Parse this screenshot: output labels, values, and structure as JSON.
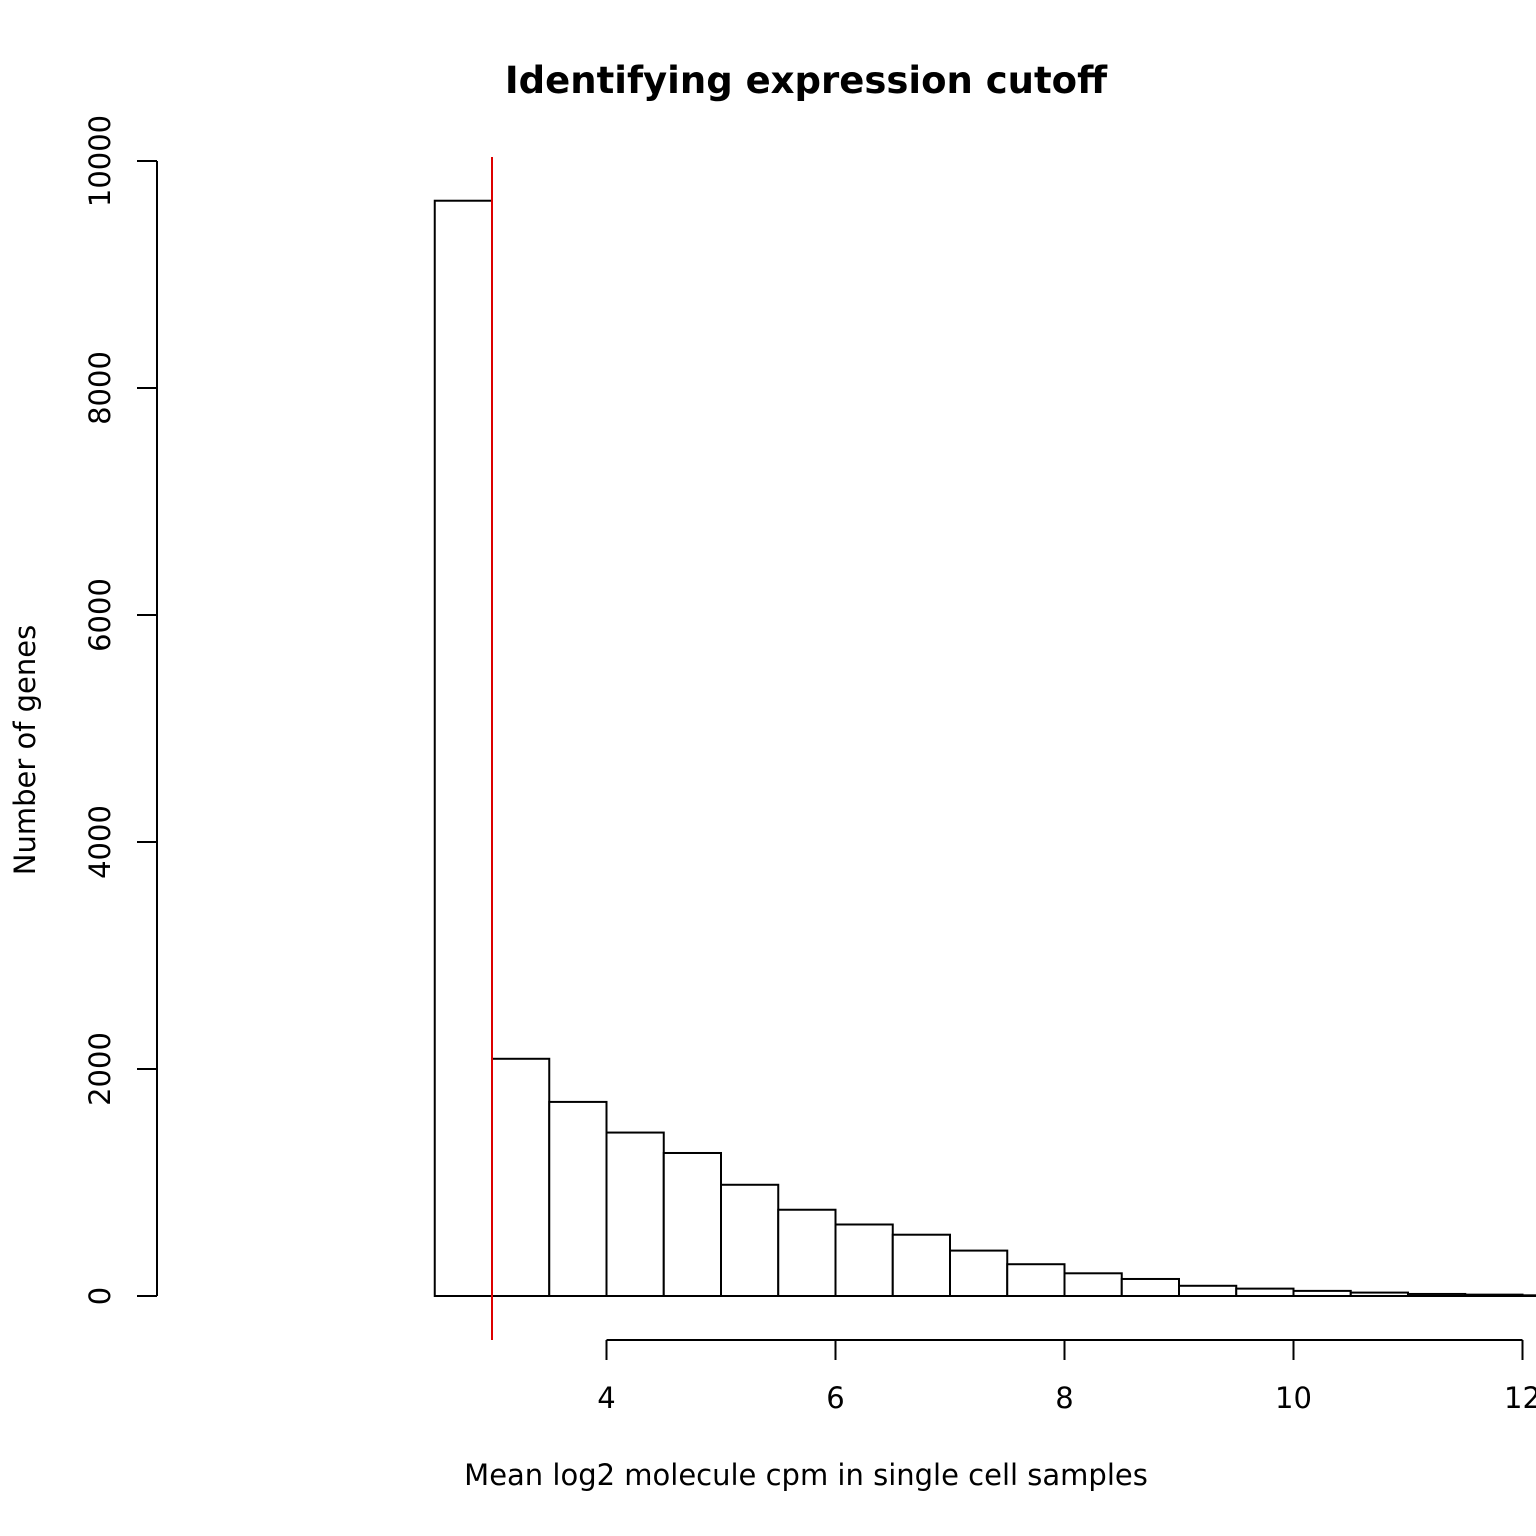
{
  "chart_data": {
    "type": "bar",
    "title": "Identifying expression cutoff",
    "xlabel": "Mean log2 molecule cpm in single cell samples",
    "ylabel": "Number of genes",
    "xlim": [
      2.5,
      13
    ],
    "ylim": [
      0,
      10000
    ],
    "x_ticks": [
      4,
      6,
      8,
      10,
      12
    ],
    "y_ticks": [
      0,
      2000,
      4000,
      6000,
      8000,
      10000
    ],
    "bin_edges": [
      2.5,
      3,
      3.5,
      4,
      4.5,
      5,
      5.5,
      6,
      6.5,
      7,
      7.5,
      8,
      8.5,
      9,
      9.5,
      10,
      10.5,
      11,
      11.5,
      12,
      12.5,
      13
    ],
    "values": [
      9650,
      2090,
      1710,
      1440,
      1260,
      980,
      760,
      630,
      540,
      400,
      280,
      200,
      150,
      90,
      65,
      45,
      30,
      18,
      12,
      6,
      3
    ],
    "cutoff": {
      "x": 3,
      "color": "#dd0000"
    },
    "grid": false,
    "bar_fill": "#ffffff",
    "bar_stroke": "#000000"
  }
}
